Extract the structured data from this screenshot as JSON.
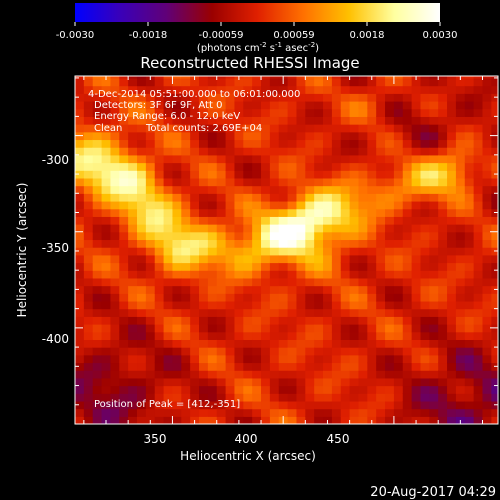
{
  "colorbar": {
    "tick_labels": [
      "-0.0030",
      "-0.0018",
      "-0.00059",
      "0.00059",
      "0.0018",
      "0.0030"
    ],
    "range": [
      -0.003,
      0.003
    ],
    "unit_base": "(photons cm",
    "unit_exp1": "-2",
    "unit_mid": " s",
    "unit_exp2": "-1",
    "unit_end": " asec",
    "unit_exp3": "-2",
    "unit_close": ")",
    "colormap": [
      "#0000ff",
      "#3a00b8",
      "#600078",
      "#9a0000",
      "#e02000",
      "#ff7000",
      "#ffc000",
      "#ffffa0",
      "#ffffff"
    ]
  },
  "chart_data": {
    "type": "heatmap",
    "title": "Reconstructed RHESSI Image",
    "xlabel": "Heliocentric X (arcsec)",
    "ylabel": "Heliocentric Y (arcsec)",
    "xlim": [
      306,
      497
    ],
    "ylim": [
      -450,
      -269
    ],
    "x_ticks": [
      350,
      400,
      450
    ],
    "y_ticks": [
      -300,
      -350,
      -400
    ],
    "info": {
      "time_range": "4-Dec-2014 05:51:00.000 to 06:01:00.000",
      "detectors": "Detectors: 3F 6F 9F, Att 0",
      "energy": "Energy Range: 6.0 - 12.0 keV",
      "method": "Clean",
      "counts": "Total counts: 2.69E+04"
    },
    "peak_text": "Position of Peak = [412,-351]",
    "peak": [
      412,
      -351
    ],
    "ridge": [
      [
        306,
        -312
      ],
      [
        330,
        -325
      ],
      [
        355,
        -356
      ],
      [
        380,
        -360
      ],
      [
        405,
        -348
      ],
      [
        430,
        -336
      ],
      [
        450,
        -326
      ],
      [
        475,
        -318
      ]
    ],
    "secondary_source": [
      440,
      -283
    ]
  },
  "footer": {
    "date": "20-Aug-2017 04:29"
  }
}
